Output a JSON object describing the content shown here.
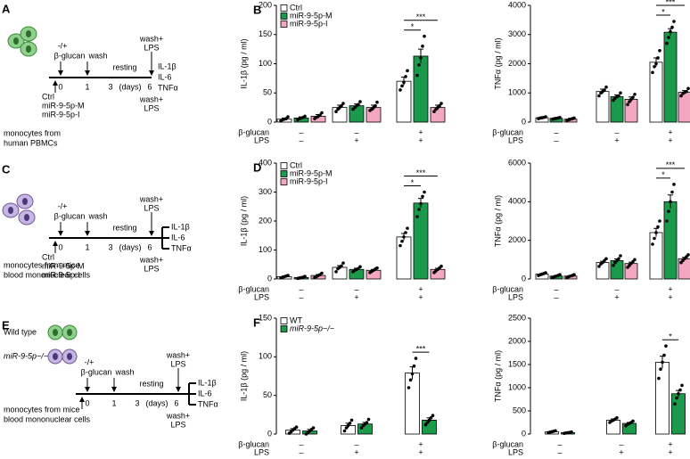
{
  "schematics": [
    {
      "label": "A",
      "treatment": "-/+",
      "stimulus": "β-glucan",
      "wash": "wash",
      "rest": "resting",
      "days": [
        "0",
        "1",
        "3",
        "(days)",
        "6"
      ],
      "restim_top": [
        "wash+",
        "LPS"
      ],
      "restim_bottom": [
        "wash+",
        "LPS"
      ],
      "readouts": [
        "IL-1β",
        "IL-6",
        "TNFα"
      ],
      "groups": [
        "Ctrl",
        "miR-9-5p-M",
        "miR-9-5p-I"
      ],
      "source": [
        "monocytes from",
        "human PBMCs"
      ]
    },
    {
      "label": "C",
      "treatment": "-/+",
      "stimulus": "β-glucan",
      "wash": "wash",
      "rest": "resting",
      "days": [
        "0",
        "1",
        "3",
        "(days)",
        "6"
      ],
      "restim_top": [
        "wash+",
        "LPS"
      ],
      "restim_bottom": [
        "wash+",
        "LPS"
      ],
      "readouts": [
        "IL-1β",
        "IL-6",
        "TNFα"
      ],
      "groups": [
        "Ctrl",
        "miR-9-5p-M",
        "miR-9-5p-I"
      ],
      "source": [
        "monocytes from mice",
        "blood mononuclear cells"
      ]
    },
    {
      "label": "E",
      "treatment": "-/+",
      "stimulus": "β-glucan",
      "wash": "wash",
      "rest": "resting",
      "days": [
        "0",
        "1",
        "3",
        "(days)",
        "6"
      ],
      "restim_top": [
        "wash+",
        "LPS"
      ],
      "restim_bottom": [
        "wash+",
        "LPS"
      ],
      "readouts": [
        "IL-1β",
        "IL-6",
        "TNFα"
      ],
      "groups": [
        "Wild type",
        "miR-9-5p−/−"
      ],
      "source": [
        "monocytes from mice",
        "blood mononuclear cells"
      ]
    }
  ],
  "chart_data": [
    {
      "type": "bar",
      "label": "B",
      "ylabel": "IL-1β (pg / ml)",
      "ylim": [
        0,
        200
      ],
      "yticks": [
        0,
        50,
        100,
        150,
        200
      ],
      "legend": true,
      "row_labels": [
        "β-glucan",
        "LPS"
      ],
      "categories": [
        {
          "beta_glucan": "–",
          "lps": "–"
        },
        {
          "beta_glucan": "–",
          "lps": "+"
        },
        {
          "beta_glucan": "+",
          "lps": "+"
        }
      ],
      "series": [
        {
          "name": "Ctrl",
          "color": "#ffffff",
          "values": [
            5,
            25,
            70
          ],
          "errors": [
            2,
            4,
            7
          ],
          "points": [
            [
              2,
              4,
              5,
              6,
              9
            ],
            [
              18,
              22,
              25,
              28,
              32
            ],
            [
              55,
              62,
              68,
              78,
              88
            ]
          ]
        },
        {
          "name": "miR-9-5p-M",
          "color": "#1a9a4a",
          "values": [
            7,
            28,
            113
          ],
          "errors": [
            2,
            3,
            12
          ],
          "points": [
            [
              4,
              6,
              7,
              8,
              10
            ],
            [
              22,
              25,
              28,
              30,
              35
            ],
            [
              80,
              98,
              110,
              130,
              147
            ]
          ]
        },
        {
          "name": "miR-9-5p-I",
          "color": "#f4a7c0",
          "values": [
            10,
            25,
            25
          ],
          "errors": [
            3,
            4,
            4
          ],
          "points": [
            [
              6,
              8,
              10,
              12,
              16
            ],
            [
              20,
              22,
              25,
              28,
              34
            ],
            [
              18,
              22,
              25,
              28,
              32
            ]
          ]
        }
      ],
      "annotations": [
        {
          "text": "*",
          "between": [
            "Ctrl",
            "miR-9-5p-M"
          ]
        },
        {
          "text": "***",
          "between": [
            "Ctrl",
            "miR-9-5p-I"
          ]
        }
      ]
    },
    {
      "type": "bar",
      "ylabel": "TNFα (pg / ml)",
      "ylim": [
        0,
        4000
      ],
      "yticks": [
        0,
        1000,
        2000,
        3000,
        4000
      ],
      "legend": false,
      "row_labels": [
        "β-glucan",
        "LPS"
      ],
      "categories": [
        {
          "beta_glucan": "–",
          "lps": "–"
        },
        {
          "beta_glucan": "–",
          "lps": "+"
        },
        {
          "beta_glucan": "+",
          "lps": "+"
        }
      ],
      "series": [
        {
          "name": "Ctrl",
          "color": "#ffffff",
          "values": [
            150,
            1050,
            2050
          ],
          "errors": [
            20,
            80,
            150
          ],
          "points": [
            [
              120,
              140,
              150,
              160,
              180
            ],
            [
              900,
              1000,
              1050,
              1100,
              1200
            ],
            [
              1700,
              1900,
              2000,
              2200,
              2450
            ]
          ]
        },
        {
          "name": "miR-9-5p-M",
          "color": "#1a9a4a",
          "values": [
            130,
            870,
            3080
          ],
          "errors": [
            20,
            60,
            120
          ],
          "points": [
            [
              100,
              120,
              130,
              140,
              160
            ],
            [
              750,
              820,
              870,
              900,
              1000
            ],
            [
              2700,
              2900,
              3100,
              3250,
              3450
            ]
          ]
        },
        {
          "name": "miR-9-5p-I",
          "color": "#f4a7c0",
          "values": [
            100,
            780,
            1020
          ],
          "errors": [
            30,
            80,
            60
          ],
          "points": [
            [
              60,
              80,
              100,
              120,
              140
            ],
            [
              600,
              700,
              780,
              850,
              950
            ],
            [
              900,
              980,
              1020,
              1050,
              1150
            ]
          ]
        }
      ],
      "annotations": [
        {
          "text": "*",
          "between": [
            "Ctrl",
            "miR-9-5p-M"
          ]
        },
        {
          "text": "***",
          "between": [
            "Ctrl",
            "miR-9-5p-I"
          ]
        }
      ]
    },
    {
      "type": "bar",
      "label": "D",
      "ylabel": "IL-1β (pg / ml)",
      "ylim": [
        0,
        400
      ],
      "yticks": [
        0,
        100,
        200,
        300,
        400
      ],
      "legend": true,
      "row_labels": [
        "β-glucan",
        "LPS"
      ],
      "categories": [
        {
          "beta_glucan": "–",
          "lps": "–"
        },
        {
          "beta_glucan": "–",
          "lps": "+"
        },
        {
          "beta_glucan": "+",
          "lps": "+"
        }
      ],
      "series": [
        {
          "name": "Ctrl",
          "color": "#ffffff",
          "values": [
            8,
            40,
            145
          ],
          "errors": [
            2,
            6,
            12
          ],
          "points": [
            [
              4,
              6,
              8,
              10,
              12
            ],
            [
              25,
              35,
              40,
              45,
              55
            ],
            [
              115,
              130,
              145,
              160,
              175
            ]
          ]
        },
        {
          "name": "miR-9-5p-M",
          "color": "#1a9a4a",
          "values": [
            5,
            33,
            262
          ],
          "errors": [
            2,
            4,
            16
          ],
          "points": [
            [
              2,
              3,
              5,
              6,
              9
            ],
            [
              25,
              30,
              33,
              36,
              42
            ],
            [
              215,
              240,
              260,
              285,
              300
            ]
          ]
        },
        {
          "name": "miR-9-5p-I",
          "color": "#f4a7c0",
          "values": [
            12,
            30,
            33
          ],
          "errors": [
            3,
            3,
            4
          ],
          "points": [
            [
              5,
              8,
              12,
              15,
              20
            ],
            [
              22,
              26,
              30,
              34,
              38
            ],
            [
              22,
              28,
              33,
              38,
              44
            ]
          ]
        }
      ],
      "annotations": [
        {
          "text": "*",
          "between": [
            "Ctrl",
            "miR-9-5p-M"
          ]
        },
        {
          "text": "***",
          "between": [
            "Ctrl",
            "miR-9-5p-I"
          ]
        }
      ]
    },
    {
      "type": "bar",
      "ylabel": "TNFα (pg / ml)",
      "ylim": [
        0,
        6000
      ],
      "yticks": [
        0,
        2000,
        4000,
        6000
      ],
      "legend": false,
      "row_labels": [
        "β-glucan",
        "LPS"
      ],
      "categories": [
        {
          "beta_glucan": "–",
          "lps": "–"
        },
        {
          "beta_glucan": "–",
          "lps": "+"
        },
        {
          "beta_glucan": "+",
          "lps": "+"
        }
      ],
      "series": [
        {
          "name": "Ctrl",
          "color": "#ffffff",
          "values": [
            250,
            850,
            2400
          ],
          "errors": [
            30,
            70,
            220
          ],
          "points": [
            [
              180,
              220,
              250,
              280,
              320
            ],
            [
              650,
              780,
              850,
              950,
              1050
            ],
            [
              1800,
              2100,
              2400,
              2700,
              3000
            ]
          ]
        },
        {
          "name": "miR-9-5p-M",
          "color": "#1a9a4a",
          "values": [
            150,
            950,
            4000
          ],
          "errors": [
            25,
            90,
            350
          ],
          "points": [
            [
              80,
              120,
              150,
              180,
              220
            ],
            [
              700,
              850,
              950,
              1050,
              1200
            ],
            [
              3000,
              3500,
              4000,
              4500,
              4900
            ]
          ]
        },
        {
          "name": "miR-9-5p-I",
          "color": "#f4a7c0",
          "values": [
            150,
            800,
            1050
          ],
          "errors": [
            25,
            70,
            70
          ],
          "points": [
            [
              80,
              120,
              150,
              180,
              220
            ],
            [
              600,
              700,
              800,
              900,
              1000
            ],
            [
              850,
              950,
              1050,
              1150,
              1250
            ]
          ]
        }
      ],
      "annotations": [
        {
          "text": "*",
          "between": [
            "Ctrl",
            "miR-9-5p-M"
          ]
        },
        {
          "text": "***",
          "between": [
            "Ctrl",
            "miR-9-5p-I"
          ]
        }
      ]
    },
    {
      "type": "bar",
      "label": "F",
      "ylabel": "IL-1β (pg / ml)",
      "ylim": [
        0,
        150
      ],
      "yticks": [
        0,
        50,
        100,
        150
      ],
      "legend": true,
      "row_labels": [
        "β-glucan",
        "LPS"
      ],
      "categories": [
        {
          "beta_glucan": "–",
          "lps": "–"
        },
        {
          "beta_glucan": "–",
          "lps": "+"
        },
        {
          "beta_glucan": "+",
          "lps": "+"
        }
      ],
      "series": [
        {
          "name": "WT",
          "color": "#ffffff",
          "values": [
            5,
            11,
            79
          ],
          "errors": [
            2,
            3,
            8
          ],
          "points": [
            [
              1,
              3,
              5,
              7,
              9
            ],
            [
              4,
              8,
              11,
              14,
              18
            ],
            [
              60,
              70,
              78,
              88,
              98
            ]
          ]
        },
        {
          "name": "miR-9-5p−/−",
          "color": "#1a9a4a",
          "values": [
            4,
            13,
            18
          ],
          "errors": [
            2,
            2,
            3
          ],
          "points": [
            [
              0,
              2,
              4,
              6,
              8
            ],
            [
              8,
              11,
              13,
              15,
              19
            ],
            [
              12,
              15,
              18,
              21,
              24
            ]
          ]
        }
      ],
      "annotations": [
        {
          "text": "***",
          "between": [
            "WT",
            "miR-9-5p−/−"
          ]
        }
      ]
    },
    {
      "type": "bar",
      "ylabel": "TNFα (pg / ml)",
      "ylim": [
        0,
        2500
      ],
      "yticks": [
        0,
        500,
        1000,
        1500,
        2000,
        2500
      ],
      "legend": false,
      "row_labels": [
        "β-glucan",
        "LPS"
      ],
      "categories": [
        {
          "beta_glucan": "–",
          "lps": "–"
        },
        {
          "beta_glucan": "–",
          "lps": "+"
        },
        {
          "beta_glucan": "+",
          "lps": "+"
        }
      ],
      "series": [
        {
          "name": "WT",
          "color": "#ffffff",
          "values": [
            50,
            300,
            1550
          ],
          "errors": [
            10,
            25,
            130
          ],
          "points": [
            [
              30,
              40,
              50,
              60,
              70
            ],
            [
              250,
              280,
              300,
              320,
              350
            ],
            [
              1200,
              1400,
              1550,
              1700,
              1900
            ]
          ]
        },
        {
          "name": "miR-9-5p−/−",
          "color": "#1a9a4a",
          "values": [
            30,
            230,
            870
          ],
          "errors": [
            8,
            20,
            70
          ],
          "points": [
            [
              15,
              25,
              30,
              35,
              45
            ],
            [
              180,
              210,
              230,
              250,
              280
            ],
            [
              650,
              780,
              870,
              950,
              1050
            ]
          ]
        }
      ],
      "annotations": [
        {
          "text": "*",
          "between": [
            "WT",
            "miR-9-5p−/−"
          ]
        }
      ]
    }
  ]
}
